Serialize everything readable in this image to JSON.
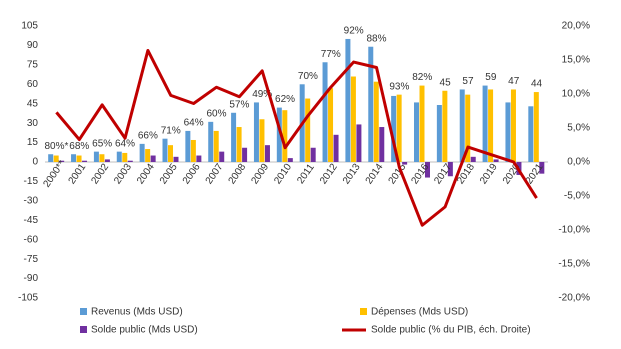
{
  "chart_data": {
    "type": "bar_line",
    "categories": [
      "2000**",
      "2001",
      "2002",
      "2003",
      "2004",
      "2005",
      "2006",
      "2007",
      "2008",
      "2009",
      "2010",
      "2011",
      "2012",
      "2013",
      "2014",
      "2015",
      "2016",
      "2017",
      "2018",
      "2019",
      "2020",
      "2021"
    ],
    "series": [
      {
        "name": "Revenus (Mds USD)",
        "color": "#5b9bd5",
        "values": [
          6,
          6,
          8,
          8,
          14,
          18,
          24,
          31,
          38,
          46,
          42,
          60,
          77,
          95,
          89,
          51,
          46,
          44,
          56,
          59,
          46,
          43
        ]
      },
      {
        "name": "Dépenses (Mds USD)",
        "color": "#ffc000",
        "values": [
          5,
          5,
          6,
          7,
          10,
          13,
          17,
          24,
          27,
          33,
          40,
          49,
          57,
          66,
          62,
          52,
          59,
          55,
          52,
          56,
          56,
          54
        ]
      },
      {
        "name": "Solde public (Mds USD)",
        "color": "#7030a0",
        "values": [
          1,
          1,
          2,
          1,
          5,
          4,
          5,
          8,
          11,
          13,
          3,
          11,
          21,
          29,
          27,
          -2,
          -12,
          -11,
          4,
          2,
          -10,
          -9
        ]
      },
      {
        "name": "Solde public (% du PIB, éch. Droite)",
        "color": "#c00000",
        "axis": "y2",
        "values": [
          7.3,
          3.3,
          8.4,
          3.5,
          16.4,
          9.8,
          8.6,
          11.0,
          9.6,
          13.4,
          2.1,
          6.8,
          11.0,
          14.7,
          13.9,
          -0.8,
          -9.3,
          -6.6,
          2.2,
          1.1,
          0.0,
          -5.3
        ]
      }
    ],
    "annotations": [
      "80%*",
      "68%",
      "65%",
      "64%",
      "66%",
      "71%",
      "64%",
      "60%",
      "57%",
      "49%",
      "62%",
      "70%",
      "77%",
      "92%",
      "88%",
      "93%",
      "82%",
      "45",
      "57",
      "59",
      "47",
      "44"
    ],
    "ylim": [
      -105,
      105
    ],
    "yticks": [
      -105,
      -90,
      -75,
      -60,
      -45,
      -30,
      -15,
      0,
      15,
      30,
      45,
      60,
      75,
      90,
      105
    ],
    "y2lim": [
      -20,
      20
    ],
    "y2ticks": [
      {
        "value": -20,
        "label": "-20,0%"
      },
      {
        "value": -15,
        "label": "-15,0%"
      },
      {
        "value": -10,
        "label": "-10,0%"
      },
      {
        "value": -5,
        "label": "-5,0%"
      },
      {
        "value": 0,
        "label": "0,0%"
      },
      {
        "value": 5,
        "label": "5,0%"
      },
      {
        "value": 10,
        "label": "10,0%"
      },
      {
        "value": 15,
        "label": "15,0%"
      },
      {
        "value": 20,
        "label": "20,0%"
      }
    ],
    "legend": "bottom"
  }
}
